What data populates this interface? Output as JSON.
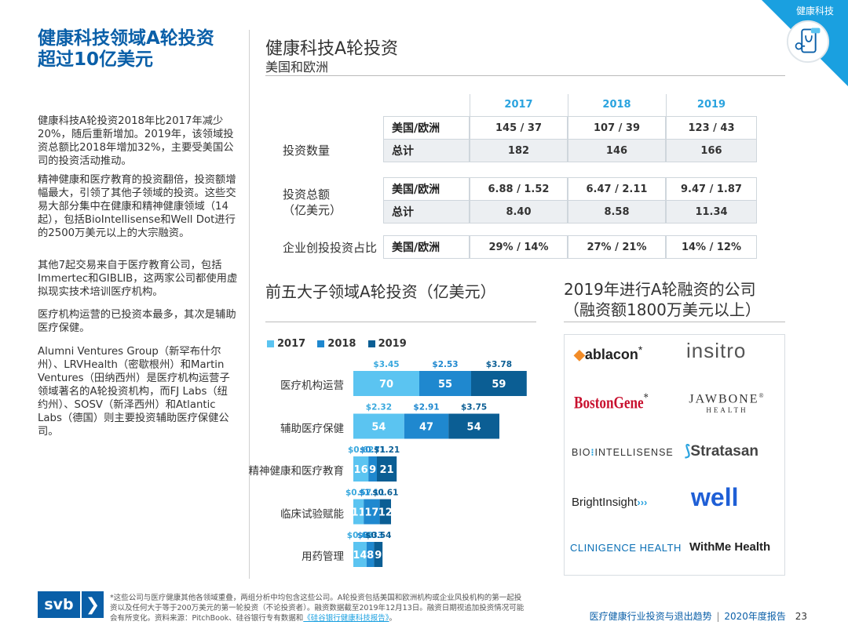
{
  "corner_tag": "健康科技",
  "colors": {
    "svb_blue": "#0a5fa8",
    "light_blue": "#5bc4f1",
    "mid_blue": "#1f88cf",
    "dark_blue": "#0b5e94"
  },
  "left": {
    "title_line1": "健康科技领域A轮投资",
    "title_line2": "超过10亿美元",
    "paragraphs": [
      "健康科技A轮投资2018年比2017年减少20%，随后重新增加。2019年，该领域投资总额比2018年增加32%，主要受美国公司的投资活动推动。",
      "精神健康和医疗教育的投资翻倍，投资额增幅最大，引领了其他子领域的投资。这些交易大部分集中在健康和精神健康领域（14起），包括BioIntellisense和Well Dot进行的2500万美元以上的大宗融资。",
      "其他7起交易来自于医疗教育公司，包括Immertec和GIBLIB，这两家公司都使用虚拟现实技术培训医疗机构。",
      "医疗机构运营的已投资本最多，其次是辅助医疗保健。",
      "Alumni Ventures Group（新罕布什尔州）、LRVHealth（密歇根州）和Martin Ventures（田纳西州）是医疗机构运营子领域著名的A轮投资机构，而FJ Labs（纽约州）、SOSV（新泽西州）和Atlantic Labs（德国）则主要投资辅助医疗保健公司。"
    ]
  },
  "table": {
    "title": "健康科技A轮投资",
    "subtitle": "美国和欧洲",
    "years": [
      "2017",
      "2018",
      "2019"
    ],
    "groups": [
      {
        "label": "投资数量",
        "rows": [
          {
            "name": "美国/欧洲",
            "values": [
              "145 / 37",
              "107 / 39",
              "123 / 43"
            ]
          },
          {
            "name": "总计",
            "values": [
              "182",
              "146",
              "166"
            ]
          }
        ]
      },
      {
        "label_line1": "投资总额",
        "label_line2": "（亿美元）",
        "rows": [
          {
            "name": "美国/欧洲",
            "values": [
              "6.88 / 1.52",
              "6.47 / 2.11",
              "9.47 / 1.87"
            ]
          },
          {
            "name": "总计",
            "values": [
              "8.40",
              "8.58",
              "11.34"
            ]
          }
        ]
      },
      {
        "label": "企业创投投资占比",
        "rows": [
          {
            "name": "美国/欧洲",
            "values": [
              "29% / 14%",
              "27% / 21%",
              "14% / 12%"
            ]
          }
        ]
      }
    ]
  },
  "bar_section": {
    "title": "前五大子领域A轮投资（亿美元）"
  },
  "chart_data": {
    "type": "bar",
    "orientation": "horizontal",
    "stacked": true,
    "categories": [
      "医疗机构运营",
      "辅助医疗保健",
      "精神健康和医疗教育",
      "临床试验赋能",
      "用药管理"
    ],
    "series": [
      {
        "name": "2017",
        "color": "#5bc4f1",
        "values": [
          70,
          54,
          16,
          11,
          14
        ],
        "labels": [
          "$3.45",
          "$2.32",
          "$0.62",
          "$0.57",
          "$0.68"
        ]
      },
      {
        "name": "2018",
        "color": "#1f88cf",
        "values": [
          55,
          47,
          9,
          17,
          8
        ],
        "labels": [
          "$2.53",
          "$2.91",
          "$0.71",
          "$1.11",
          "$0.33"
        ]
      },
      {
        "name": "2019",
        "color": "#0b5e94",
        "values": [
          59,
          54,
          21,
          12,
          9
        ],
        "labels": [
          "$3.78",
          "$3.75",
          "$1.21",
          "$0.61",
          "$0.54"
        ]
      }
    ],
    "legend_position": "top-left",
    "grid": false
  },
  "companies": {
    "title_line1": "2019年进行A轮融资的公司",
    "title_line2": "（融资额1800万美元以上）",
    "logos": {
      "ablacon": "ablacon",
      "ablacon_mark": "*",
      "insitro": "insitro",
      "bostongene": "BostonGene",
      "bostongene_mark": "*",
      "jawbone": "JAWBONE",
      "jawbone_reg": "®",
      "jawbone_sub": "HEALTH",
      "biointellisense_a": "BIO",
      "biointellisense_b": "INTELLISENSE",
      "stratasan": "Stratasan",
      "brightinsight": "BrightInsight",
      "well": "well",
      "clinigence": "CLINIGENCE HEALTH",
      "withme": "WithMe Health"
    }
  },
  "footer": {
    "note_prefix": "*这些公司与医疗健康其他各领域重叠，两组分析中均包含这些公司。A轮投资包括美国和欧洲机构或企业风投机构的第一起投资以及任何大于等于200万美元的第一轮投资（不论投资者）。融资数据截至2019年12月13日。融资日期视追加投资情况可能会有所变化。资料来源：PitchBook、硅谷银行专有数据和",
    "note_link": "《硅谷银行健康科技报告》",
    "note_suffix": "。",
    "svb_logo": "svb",
    "report_title": "医疗健康行业投资与退出趋势",
    "report_sep": "|",
    "report_year": "2020年度报告",
    "page_number": "23"
  }
}
